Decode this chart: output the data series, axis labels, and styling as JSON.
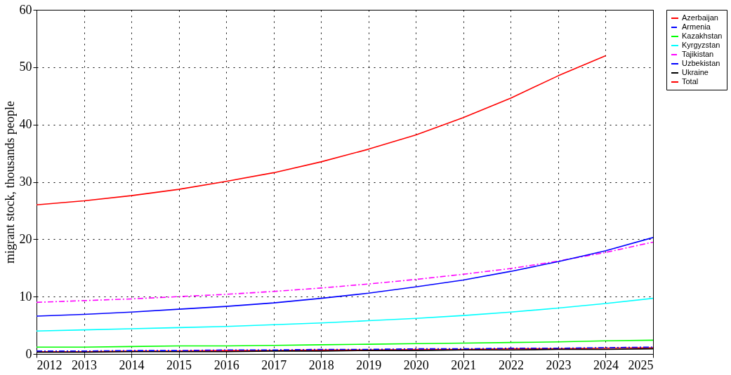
{
  "chart_data": {
    "type": "line",
    "ylabel": "migrant stock, thousands people",
    "x": [
      2012,
      2013,
      2014,
      2015,
      2016,
      2017,
      2018,
      2019,
      2020,
      2021,
      2022,
      2023,
      2024,
      2025
    ],
    "xlim": [
      2012,
      2025
    ],
    "xticks": [
      2012,
      2013,
      2014,
      2015,
      2016,
      2017,
      2018,
      2019,
      2020,
      2021,
      2022,
      2023,
      2024,
      2025
    ],
    "ylim": [
      0,
      60
    ],
    "yticks": [
      0,
      10,
      20,
      30,
      40,
      50,
      60
    ],
    "grid": true,
    "legend": "right",
    "marker": "none",
    "series": [
      {
        "name": "Azerbaijan",
        "color": "#ff0000",
        "line_style": "solid",
        "values": [
          0.4,
          0.4,
          0.5,
          0.5,
          0.6,
          0.6,
          0.7,
          0.7,
          0.8,
          0.8,
          0.9,
          0.9,
          1.0,
          1.1
        ]
      },
      {
        "name": "Armenia",
        "color": "#0000ff",
        "line_style": "dashed",
        "values": [
          0.5,
          0.5,
          0.6,
          0.6,
          0.7,
          0.7,
          0.8,
          0.8,
          0.9,
          0.9,
          1.0,
          1.0,
          1.1,
          1.2
        ]
      },
      {
        "name": "Kazakhstan",
        "color": "#00ff00",
        "line_style": "solid",
        "values": [
          1.2,
          1.2,
          1.3,
          1.4,
          1.4,
          1.5,
          1.6,
          1.7,
          1.8,
          1.9,
          2.0,
          2.1,
          2.3,
          2.4
        ]
      },
      {
        "name": "Kyrgyzstan",
        "color": "#00ffff",
        "line_style": "solid",
        "values": [
          4.0,
          4.2,
          4.4,
          4.6,
          4.8,
          5.1,
          5.4,
          5.8,
          6.2,
          6.7,
          7.3,
          8.0,
          8.8,
          9.7
        ]
      },
      {
        "name": "Tajikistan",
        "color": "#ff00ff",
        "line_style": "dashed",
        "values": [
          9.0,
          9.3,
          9.6,
          10.0,
          10.4,
          10.9,
          11.5,
          12.2,
          13.0,
          13.9,
          14.9,
          16.2,
          17.7,
          19.5
        ]
      },
      {
        "name": "Uzbekistan",
        "color": "#0000ff",
        "line_style": "solid",
        "values": [
          6.6,
          6.9,
          7.3,
          7.8,
          8.3,
          8.9,
          9.7,
          10.6,
          11.7,
          12.9,
          14.4,
          16.1,
          18.0,
          20.3
        ]
      },
      {
        "name": "Ukraine",
        "color": "#000000",
        "line_style": "solid",
        "values": [
          0.3,
          0.3,
          0.4,
          0.4,
          0.4,
          0.5,
          0.5,
          0.6,
          0.6,
          0.7,
          0.7,
          0.8,
          0.8,
          0.9
        ]
      },
      {
        "name": "Total",
        "color": "#ff0000",
        "line_style": "solid",
        "values": [
          26.0,
          26.7,
          27.6,
          28.7,
          30.1,
          31.6,
          33.5,
          35.7,
          38.2,
          41.2,
          44.6,
          48.5,
          52.0,
          null
        ]
      }
    ]
  }
}
